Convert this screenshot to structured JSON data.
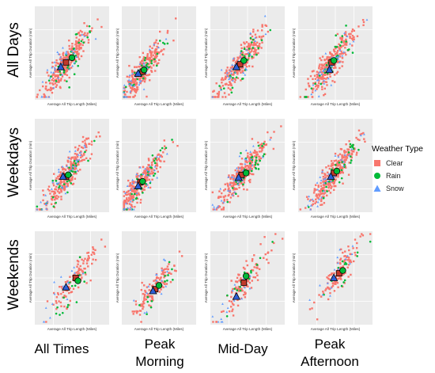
{
  "chart_data": {
    "type": "scatter",
    "xlabel": "Average All Trip Length (Miles)",
    "ylabel": "Average All Trip Duration (min)",
    "rows": [
      "All Days",
      "Weekdays",
      "Weekends"
    ],
    "columns": [
      "All Times",
      "Peak Morning",
      "Mid-Day",
      "Peak Afternoon"
    ],
    "column_label_lines": [
      [
        "All Times"
      ],
      [
        "Peak",
        "Morning"
      ],
      [
        "Mid-Day"
      ],
      [
        "Peak",
        "Afternoon"
      ]
    ],
    "legend": {
      "title": "Weather Type",
      "placement": "right",
      "items": [
        {
          "name": "Clear",
          "color": "#f8766d",
          "shape": "square"
        },
        {
          "name": "Rain",
          "color": "#00ba38",
          "shape": "circle"
        },
        {
          "name": "Snow",
          "color": "#619cff",
          "shape": "triangle"
        }
      ]
    },
    "grid": true,
    "panel_background": "#ebebeb",
    "panels": [
      {
        "row": 0,
        "col": 0,
        "means": {
          "Clear": [
            0.42,
            0.4
          ],
          "Rain": [
            0.5,
            0.45
          ],
          "Snow": [
            0.35,
            0.35
          ]
        }
      },
      {
        "row": 0,
        "col": 1,
        "means": {
          "Clear": [
            0.28,
            0.3
          ],
          "Rain": [
            0.3,
            0.32
          ],
          "Snow": [
            0.22,
            0.28
          ]
        }
      },
      {
        "row": 0,
        "col": 2,
        "means": {
          "Clear": [
            0.4,
            0.38
          ],
          "Rain": [
            0.45,
            0.42
          ],
          "Snow": [
            0.35,
            0.35
          ]
        }
      },
      {
        "row": 0,
        "col": 3,
        "means": {
          "Clear": [
            0.45,
            0.4
          ],
          "Rain": [
            0.48,
            0.42
          ],
          "Snow": [
            0.42,
            0.32
          ]
        }
      },
      {
        "row": 1,
        "col": 0,
        "means": {
          "Clear": [
            0.42,
            0.38
          ],
          "Rain": [
            0.45,
            0.4
          ],
          "Snow": [
            0.38,
            0.38
          ]
        }
      },
      {
        "row": 1,
        "col": 1,
        "means": {
          "Clear": [
            0.25,
            0.32
          ],
          "Rain": [
            0.28,
            0.33
          ],
          "Snow": [
            0.22,
            0.28
          ]
        }
      },
      {
        "row": 1,
        "col": 2,
        "means": {
          "Clear": [
            0.42,
            0.4
          ],
          "Rain": [
            0.48,
            0.42
          ],
          "Snow": [
            0.38,
            0.37
          ]
        }
      },
      {
        "row": 1,
        "col": 3,
        "means": {
          "Clear": [
            0.48,
            0.42
          ],
          "Rain": [
            0.52,
            0.44
          ],
          "Snow": [
            0.44,
            0.38
          ]
        }
      },
      {
        "row": 2,
        "col": 0,
        "means": {
          "Clear": [
            0.55,
            0.5
          ],
          "Rain": [
            0.58,
            0.47
          ],
          "Snow": [
            0.42,
            0.4
          ]
        }
      },
      {
        "row": 2,
        "col": 1,
        "means": {
          "Clear": [
            0.45,
            0.38
          ],
          "Rain": [
            0.5,
            0.42
          ],
          "Snow": [
            0.42,
            0.36
          ]
        }
      },
      {
        "row": 2,
        "col": 2,
        "means": {
          "Clear": [
            0.45,
            0.45
          ],
          "Rain": [
            0.48,
            0.52
          ],
          "Snow": [
            0.35,
            0.3
          ]
        }
      },
      {
        "row": 2,
        "col": 3,
        "means": {
          "Clear": [
            0.55,
            0.55
          ],
          "Rain": [
            0.6,
            0.58
          ],
          "Snow": [
            0.48,
            0.5
          ]
        }
      }
    ]
  }
}
